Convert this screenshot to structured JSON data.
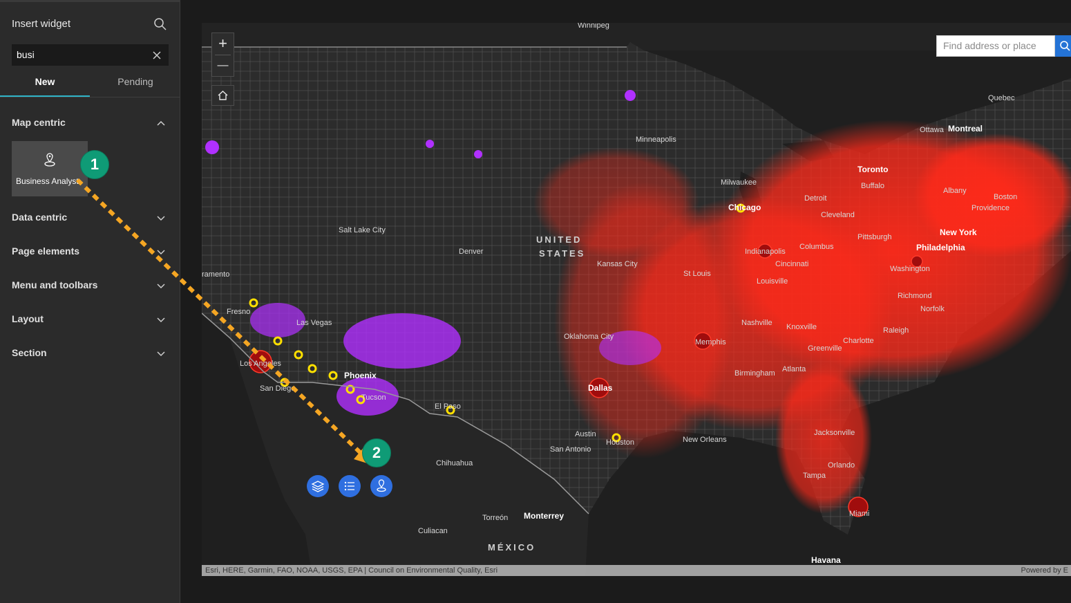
{
  "sidebar": {
    "title": "Insert widget",
    "search": {
      "value": "busi",
      "icon": "search-icon",
      "clear_icon": "close-icon"
    },
    "tabs": [
      {
        "label": "New",
        "active": true
      },
      {
        "label": "Pending",
        "active": false
      }
    ],
    "sections": [
      {
        "label": "Map centric",
        "expanded": true
      },
      {
        "label": "Data centric",
        "expanded": false
      },
      {
        "label": "Page elements",
        "expanded": false
      },
      {
        "label": "Menu and toolbars",
        "expanded": false
      },
      {
        "label": "Layout",
        "expanded": false
      },
      {
        "label": "Section",
        "expanded": false
      }
    ],
    "widget": {
      "label": "Business Analyst",
      "icon": "business-analyst-icon"
    }
  },
  "annotations": {
    "step1": "1",
    "step2": "2",
    "arrow_color": "#f5a623",
    "badge_color": "#0f9b76"
  },
  "map": {
    "zoom_in": "+",
    "zoom_out": "—",
    "home_icon": "home-icon",
    "search_placeholder": "Find address or place",
    "search_button_icon": "search-icon",
    "widget_buttons": [
      "layers-icon",
      "list-icon",
      "business-analyst-icon"
    ],
    "attribution": "Esri, HERE, Garmin, FAO, NOAA, USGS, EPA | Council on Environmental Quality, Esri",
    "powered_by": "Powered by E",
    "colors": {
      "land": "#2c2c2c",
      "water": "#1f1f1f",
      "density": "#ff2a1a",
      "purple": "#b030ff",
      "yellow": "#ffe000"
    },
    "labels": {
      "winnipeg": "Winnipeg",
      "quebec": "Quebec",
      "ottawa": "Ottawa",
      "montreal": "Montreal",
      "toronto": "Toronto",
      "minneapolis": "Minneapolis",
      "milwaukee": "Milwaukee",
      "chicago": "Chicago",
      "detroit": "Detroit",
      "buffalo": "Buffalo",
      "albany": "Albany",
      "boston": "Boston",
      "providence": "Providence",
      "cleveland": "Cleveland",
      "new_york": "New York",
      "pittsburgh": "Pittsburgh",
      "philadelphia": "Philadelphia",
      "columbus": "Columbus",
      "indianapolis": "Indianapolis",
      "cincinnati": "Cincinnati",
      "washington": "Washington",
      "united_states_1": "UNITED",
      "united_states_2": "STATES",
      "salt_lake_city": "Salt Lake City",
      "denver": "Denver",
      "kansas_city": "Kansas City",
      "st_louis": "St Louis",
      "louisville": "Louisville",
      "richmond": "Richmond",
      "norfolk": "Norfolk",
      "nashville": "Nashville",
      "knoxville": "Knoxville",
      "raleigh": "Raleigh",
      "charlotte": "Charlotte",
      "greenville": "Greenville",
      "sacramento": "ramento",
      "fresno": "Fresno",
      "las_vegas": "Las Vegas",
      "oklahoma_city": "Oklahoma City",
      "memphis": "Memphis",
      "atlanta": "Atlanta",
      "birmingham": "Birmingham",
      "los_angeles": "Los Angeles",
      "phoenix": "Phoenix",
      "san_diego": "San Diego",
      "tucson": "Tucson",
      "el_paso": "El Paso",
      "dallas": "Dallas",
      "austin": "Austin",
      "houston": "Houston",
      "san_antonio": "San Antonio",
      "new_orleans": "New Orleans",
      "jacksonville": "Jacksonville",
      "orlando": "Orlando",
      "tampa": "Tampa",
      "miami": "Miami",
      "chihuahua": "Chihuahua",
      "torreon": "Torreón",
      "monterrey": "Monterrey",
      "culiacan": "Culiacan",
      "mexico": "MÉXICO",
      "havana": "Havana"
    }
  }
}
